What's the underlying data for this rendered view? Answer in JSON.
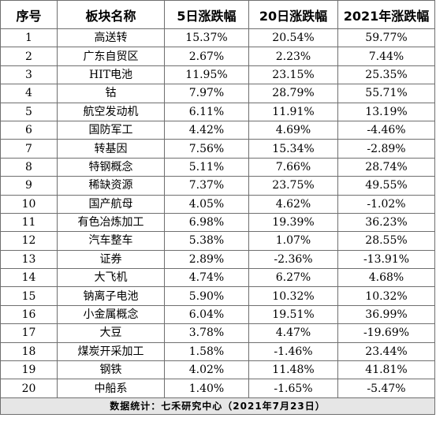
{
  "table": {
    "headers": [
      "序号",
      "板块名称",
      "5日涨跌幅",
      "20日涨跌幅",
      "2021年涨跌幅"
    ],
    "rows": [
      [
        "1",
        "高送转",
        "15.37%",
        "20.54%",
        "59.77%"
      ],
      [
        "2",
        "广东自贸区",
        "2.67%",
        "2.23%",
        "7.44%"
      ],
      [
        "3",
        "HIT电池",
        "11.95%",
        "23.15%",
        "25.35%"
      ],
      [
        "4",
        "钴",
        "7.97%",
        "28.79%",
        "55.71%"
      ],
      [
        "5",
        "航空发动机",
        "6.11%",
        "11.91%",
        "13.19%"
      ],
      [
        "6",
        "国防军工",
        "4.42%",
        "4.69%",
        "-4.46%"
      ],
      [
        "7",
        "转基因",
        "7.56%",
        "15.34%",
        "-2.89%"
      ],
      [
        "8",
        "特钢概念",
        "5.11%",
        "7.66%",
        "28.74%"
      ],
      [
        "9",
        "稀缺资源",
        "7.37%",
        "23.75%",
        "49.55%"
      ],
      [
        "10",
        "国产航母",
        "4.05%",
        "4.62%",
        "-1.02%"
      ],
      [
        "11",
        "有色冶炼加工",
        "6.98%",
        "19.39%",
        "36.23%"
      ],
      [
        "12",
        "汽车整车",
        "5.38%",
        "1.07%",
        "28.55%"
      ],
      [
        "13",
        "证券",
        "2.89%",
        "-2.36%",
        "-13.91%"
      ],
      [
        "14",
        "大飞机",
        "4.74%",
        "6.27%",
        "4.68%"
      ],
      [
        "15",
        "钠离子电池",
        "5.90%",
        "10.32%",
        "10.32%"
      ],
      [
        "16",
        "小金属概念",
        "6.04%",
        "19.51%",
        "36.99%"
      ],
      [
        "17",
        "大豆",
        "3.78%",
        "4.47%",
        "-19.69%"
      ],
      [
        "18",
        "煤炭开采加工",
        "1.58%",
        "-1.46%",
        "23.44%"
      ],
      [
        "19",
        "钢铁",
        "4.02%",
        "11.48%",
        "41.81%"
      ],
      [
        "20",
        "中船系",
        "1.40%",
        "-1.65%",
        "-5.47%"
      ]
    ],
    "footer": "数据统计：七禾研究中心（2021年7月23日）"
  }
}
